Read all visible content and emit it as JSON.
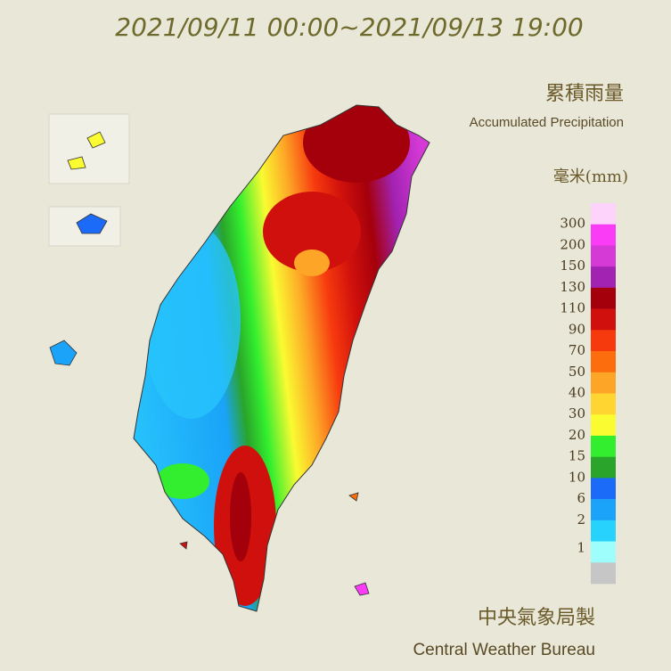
{
  "header": {
    "title": "2021/09/11 00:00~2021/09/13 19:00",
    "name_zh": "累積雨量",
    "name_en": "Accumulated Precipitation"
  },
  "legend": {
    "unit": "毫米(mm)",
    "colors": [
      "#fdd2fb",
      "#fb3cf6",
      "#d63ad6",
      "#a222b2",
      "#a4000b",
      "#d0100c",
      "#f73a0e",
      "#fb6d0d",
      "#fda526",
      "#fed531",
      "#fafb31",
      "#32ee2e",
      "#2aa42b",
      "#1b6bf8",
      "#1aa3f8",
      "#27d2fc",
      "#9dfefc",
      "#c6c6c6"
    ],
    "labels": [
      "300",
      "200",
      "150",
      "130",
      "110",
      "90",
      "70",
      "50",
      "40",
      "30",
      "20",
      "15",
      "10",
      "6",
      "2",
      "1"
    ]
  },
  "footer": {
    "name_zh": "中央氣象局製",
    "name_en": "Central Weather Bureau"
  }
}
